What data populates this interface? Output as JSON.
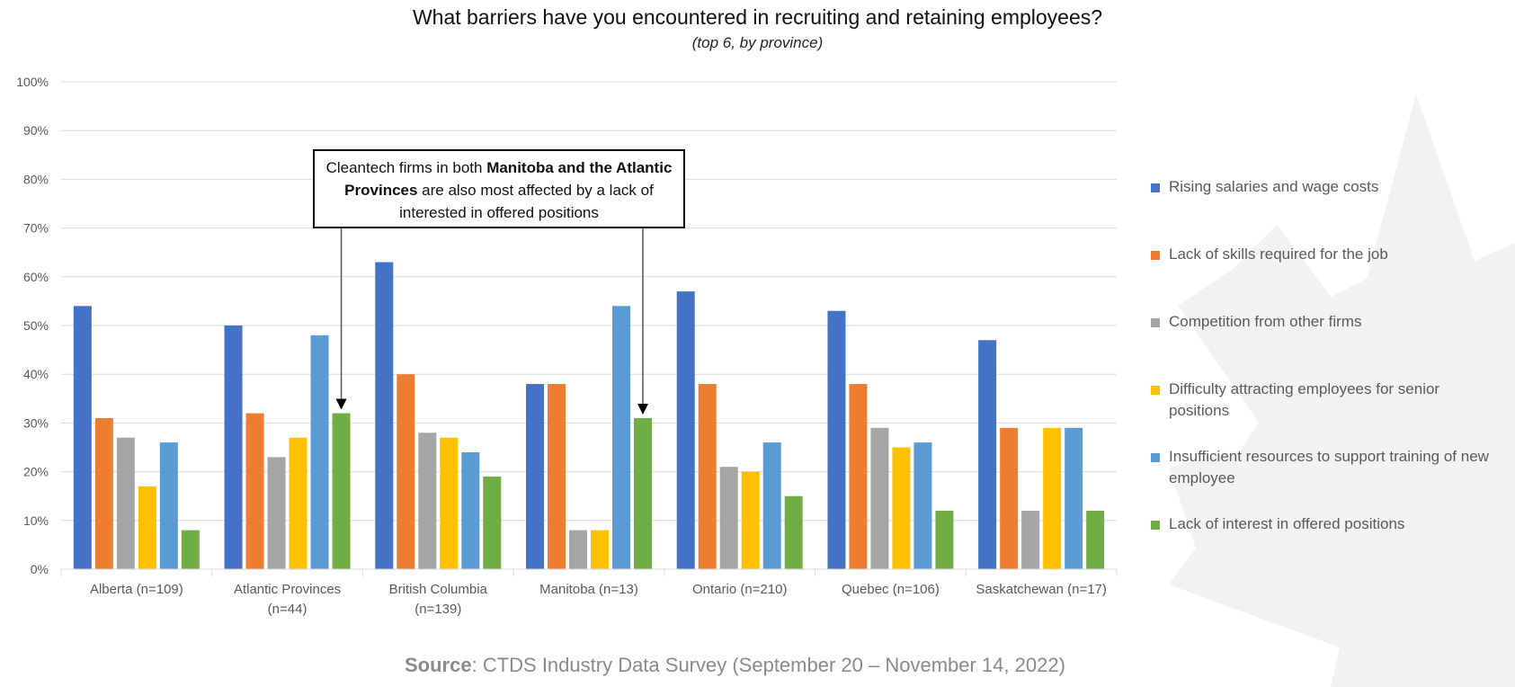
{
  "chart_data": {
    "type": "bar",
    "title": "What barriers have you encountered in recruiting and retaining employees?",
    "subtitle": "(top 6, by province)",
    "xlabel": "",
    "ylabel": "",
    "ylim": [
      0,
      100
    ],
    "yticks": [
      "0%",
      "10%",
      "20%",
      "30%",
      "40%",
      "50%",
      "60%",
      "70%",
      "80%",
      "90%",
      "100%"
    ],
    "grid": true,
    "legend_position": "right",
    "categories": [
      [
        "Alberta (n=109)"
      ],
      [
        "Atlantic Provinces",
        "(n=44)"
      ],
      [
        "British Columbia",
        "(n=139)"
      ],
      [
        "Manitoba (n=13)"
      ],
      [
        "Ontario (n=210)"
      ],
      [
        "Quebec (n=106)"
      ],
      [
        "Saskatchewan (n=17)"
      ]
    ],
    "series": [
      {
        "name": "Rising salaries and wage costs",
        "color": "#4472C4",
        "values": [
          54,
          50,
          63,
          38,
          57,
          53,
          47
        ]
      },
      {
        "name": "Lack of skills required for the job",
        "color": "#ED7D31",
        "values": [
          31,
          32,
          40,
          38,
          38,
          38,
          29
        ]
      },
      {
        "name": "Competition from other firms",
        "color": "#A5A5A5",
        "values": [
          27,
          23,
          28,
          8,
          21,
          29,
          12
        ]
      },
      {
        "name": "Difficulty attracting employees for senior positions",
        "color": "#FFC000",
        "values": [
          17,
          27,
          27,
          8,
          20,
          25,
          29
        ]
      },
      {
        "name": "Insufficient resources to support training of new employee",
        "color": "#5B9BD5",
        "values": [
          26,
          48,
          24,
          54,
          26,
          26,
          29
        ]
      },
      {
        "name": "Lack of interest in offered positions",
        "color": "#70AD47",
        "values": [
          8,
          32,
          19,
          31,
          15,
          12,
          12
        ]
      }
    ],
    "annotations": [
      {
        "text_parts": [
          {
            "text": "Cleantech firms in both ",
            "bold": false
          },
          {
            "text": "Manitoba and the Atlantic Provinces",
            "bold": true
          },
          {
            "text": " are also most affected by a lack of interested in offered positions",
            "bold": false
          }
        ],
        "points_to": [
          {
            "category": 1,
            "series": 5
          },
          {
            "category": 3,
            "series": 5
          }
        ]
      }
    ]
  },
  "source": {
    "label": "Source",
    "text": ": CTDS Industry Data Survey (September 20 – November 14, 2022)"
  }
}
